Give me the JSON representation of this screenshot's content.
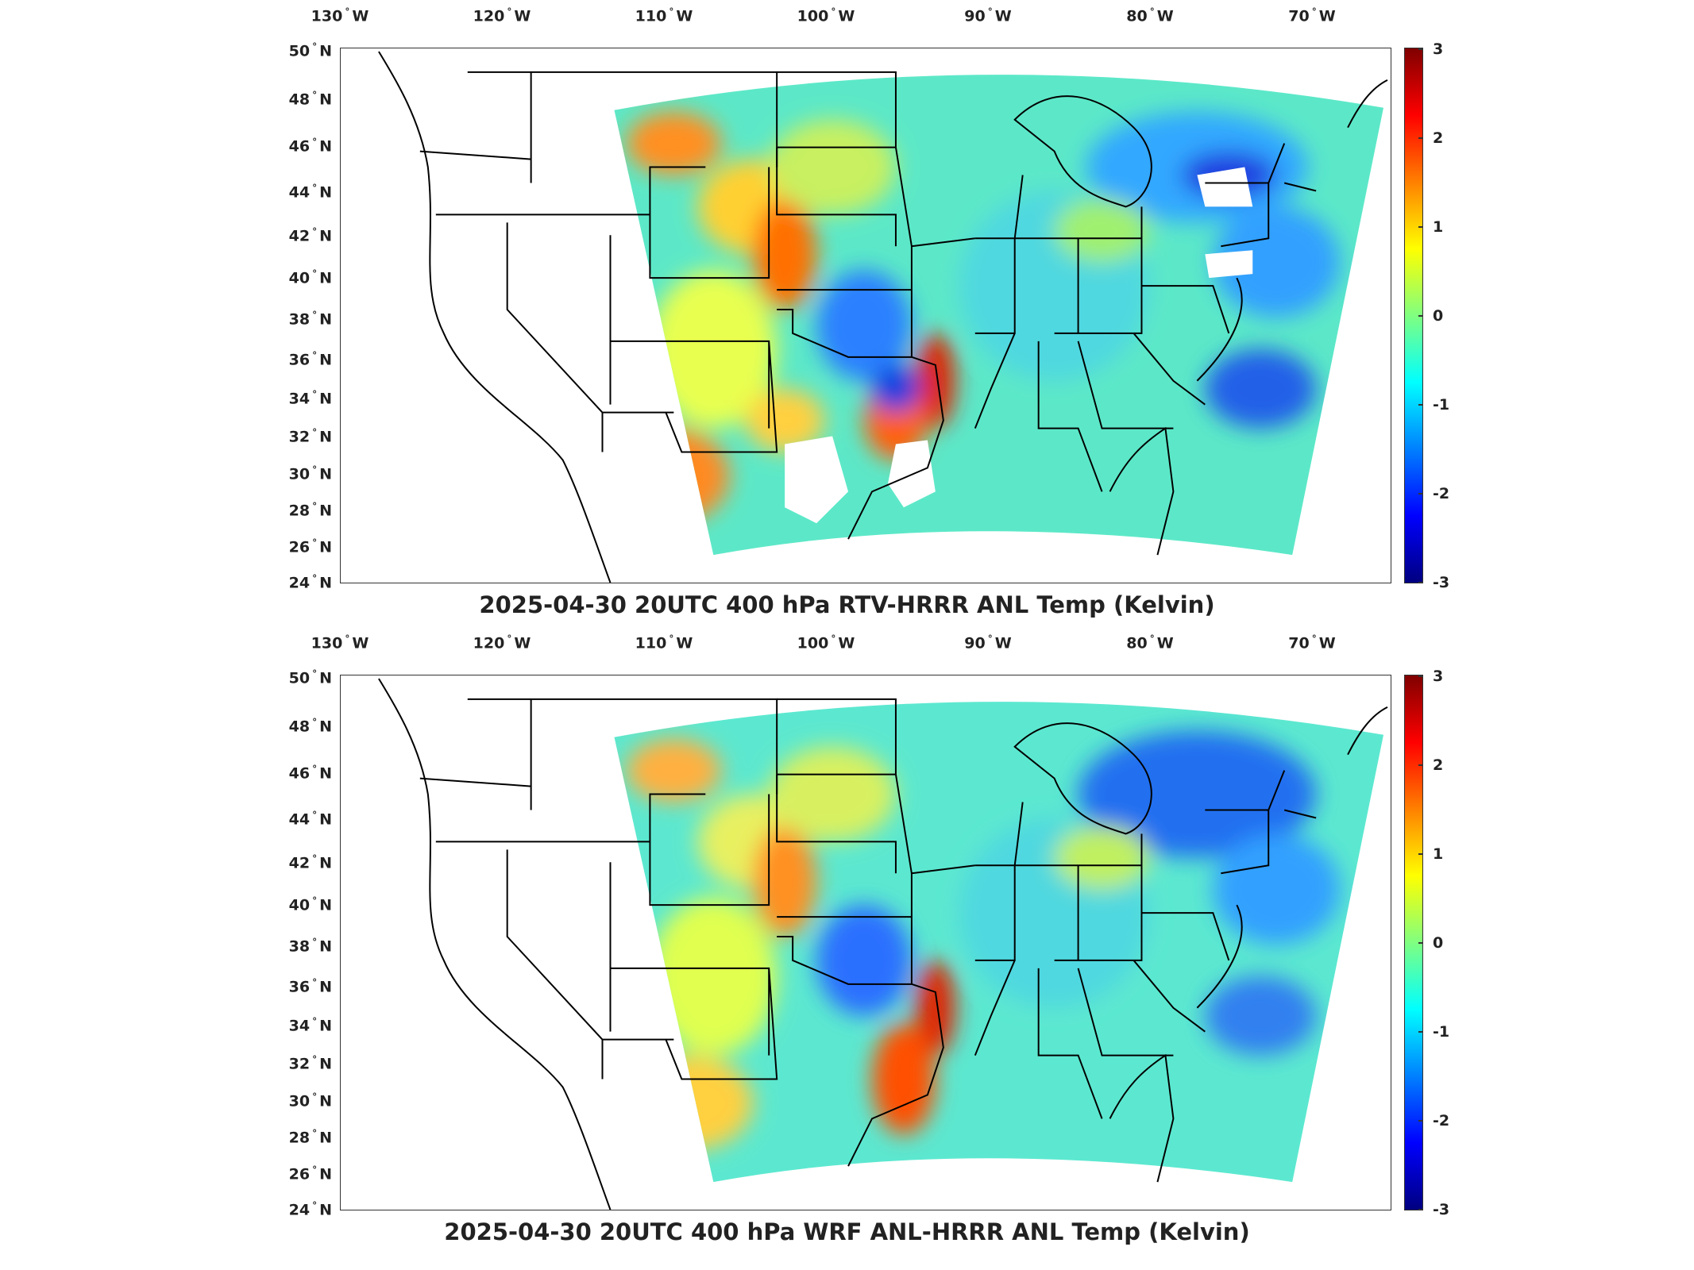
{
  "lon_labels": [
    {
      "deg": "130",
      "dir": "W"
    },
    {
      "deg": "120",
      "dir": "W"
    },
    {
      "deg": "110",
      "dir": "W"
    },
    {
      "deg": "100",
      "dir": "W"
    },
    {
      "deg": "90",
      "dir": "W"
    },
    {
      "deg": "80",
      "dir": "W"
    },
    {
      "deg": "70",
      "dir": "W"
    }
  ],
  "lat_labels": [
    {
      "deg": "50",
      "dir": "N"
    },
    {
      "deg": "48",
      "dir": "N"
    },
    {
      "deg": "46",
      "dir": "N"
    },
    {
      "deg": "44",
      "dir": "N"
    },
    {
      "deg": "42",
      "dir": "N"
    },
    {
      "deg": "40",
      "dir": "N"
    },
    {
      "deg": "38",
      "dir": "N"
    },
    {
      "deg": "36",
      "dir": "N"
    },
    {
      "deg": "34",
      "dir": "N"
    },
    {
      "deg": "32",
      "dir": "N"
    },
    {
      "deg": "30",
      "dir": "N"
    },
    {
      "deg": "28",
      "dir": "N"
    },
    {
      "deg": "26",
      "dir": "N"
    },
    {
      "deg": "24",
      "dir": "N"
    }
  ],
  "colorbar": {
    "ticks": [
      "3",
      "2",
      "1",
      "0",
      "-1",
      "-2",
      "-3"
    ],
    "colors": [
      "#800000",
      "#ff0000",
      "#ff8000",
      "#ffff00",
      "#80ff80",
      "#00ffff",
      "#0080ff",
      "#0000ff",
      "#000080"
    ]
  },
  "panels": [
    {
      "title": "2025-04-30 20UTC 400 hPa RTV-HRRR ANL Temp (Kelvin)"
    },
    {
      "title": "2025-04-30 20UTC 400 hPa WRF ANL-HRRR ANL Temp (Kelvin)"
    }
  ]
}
